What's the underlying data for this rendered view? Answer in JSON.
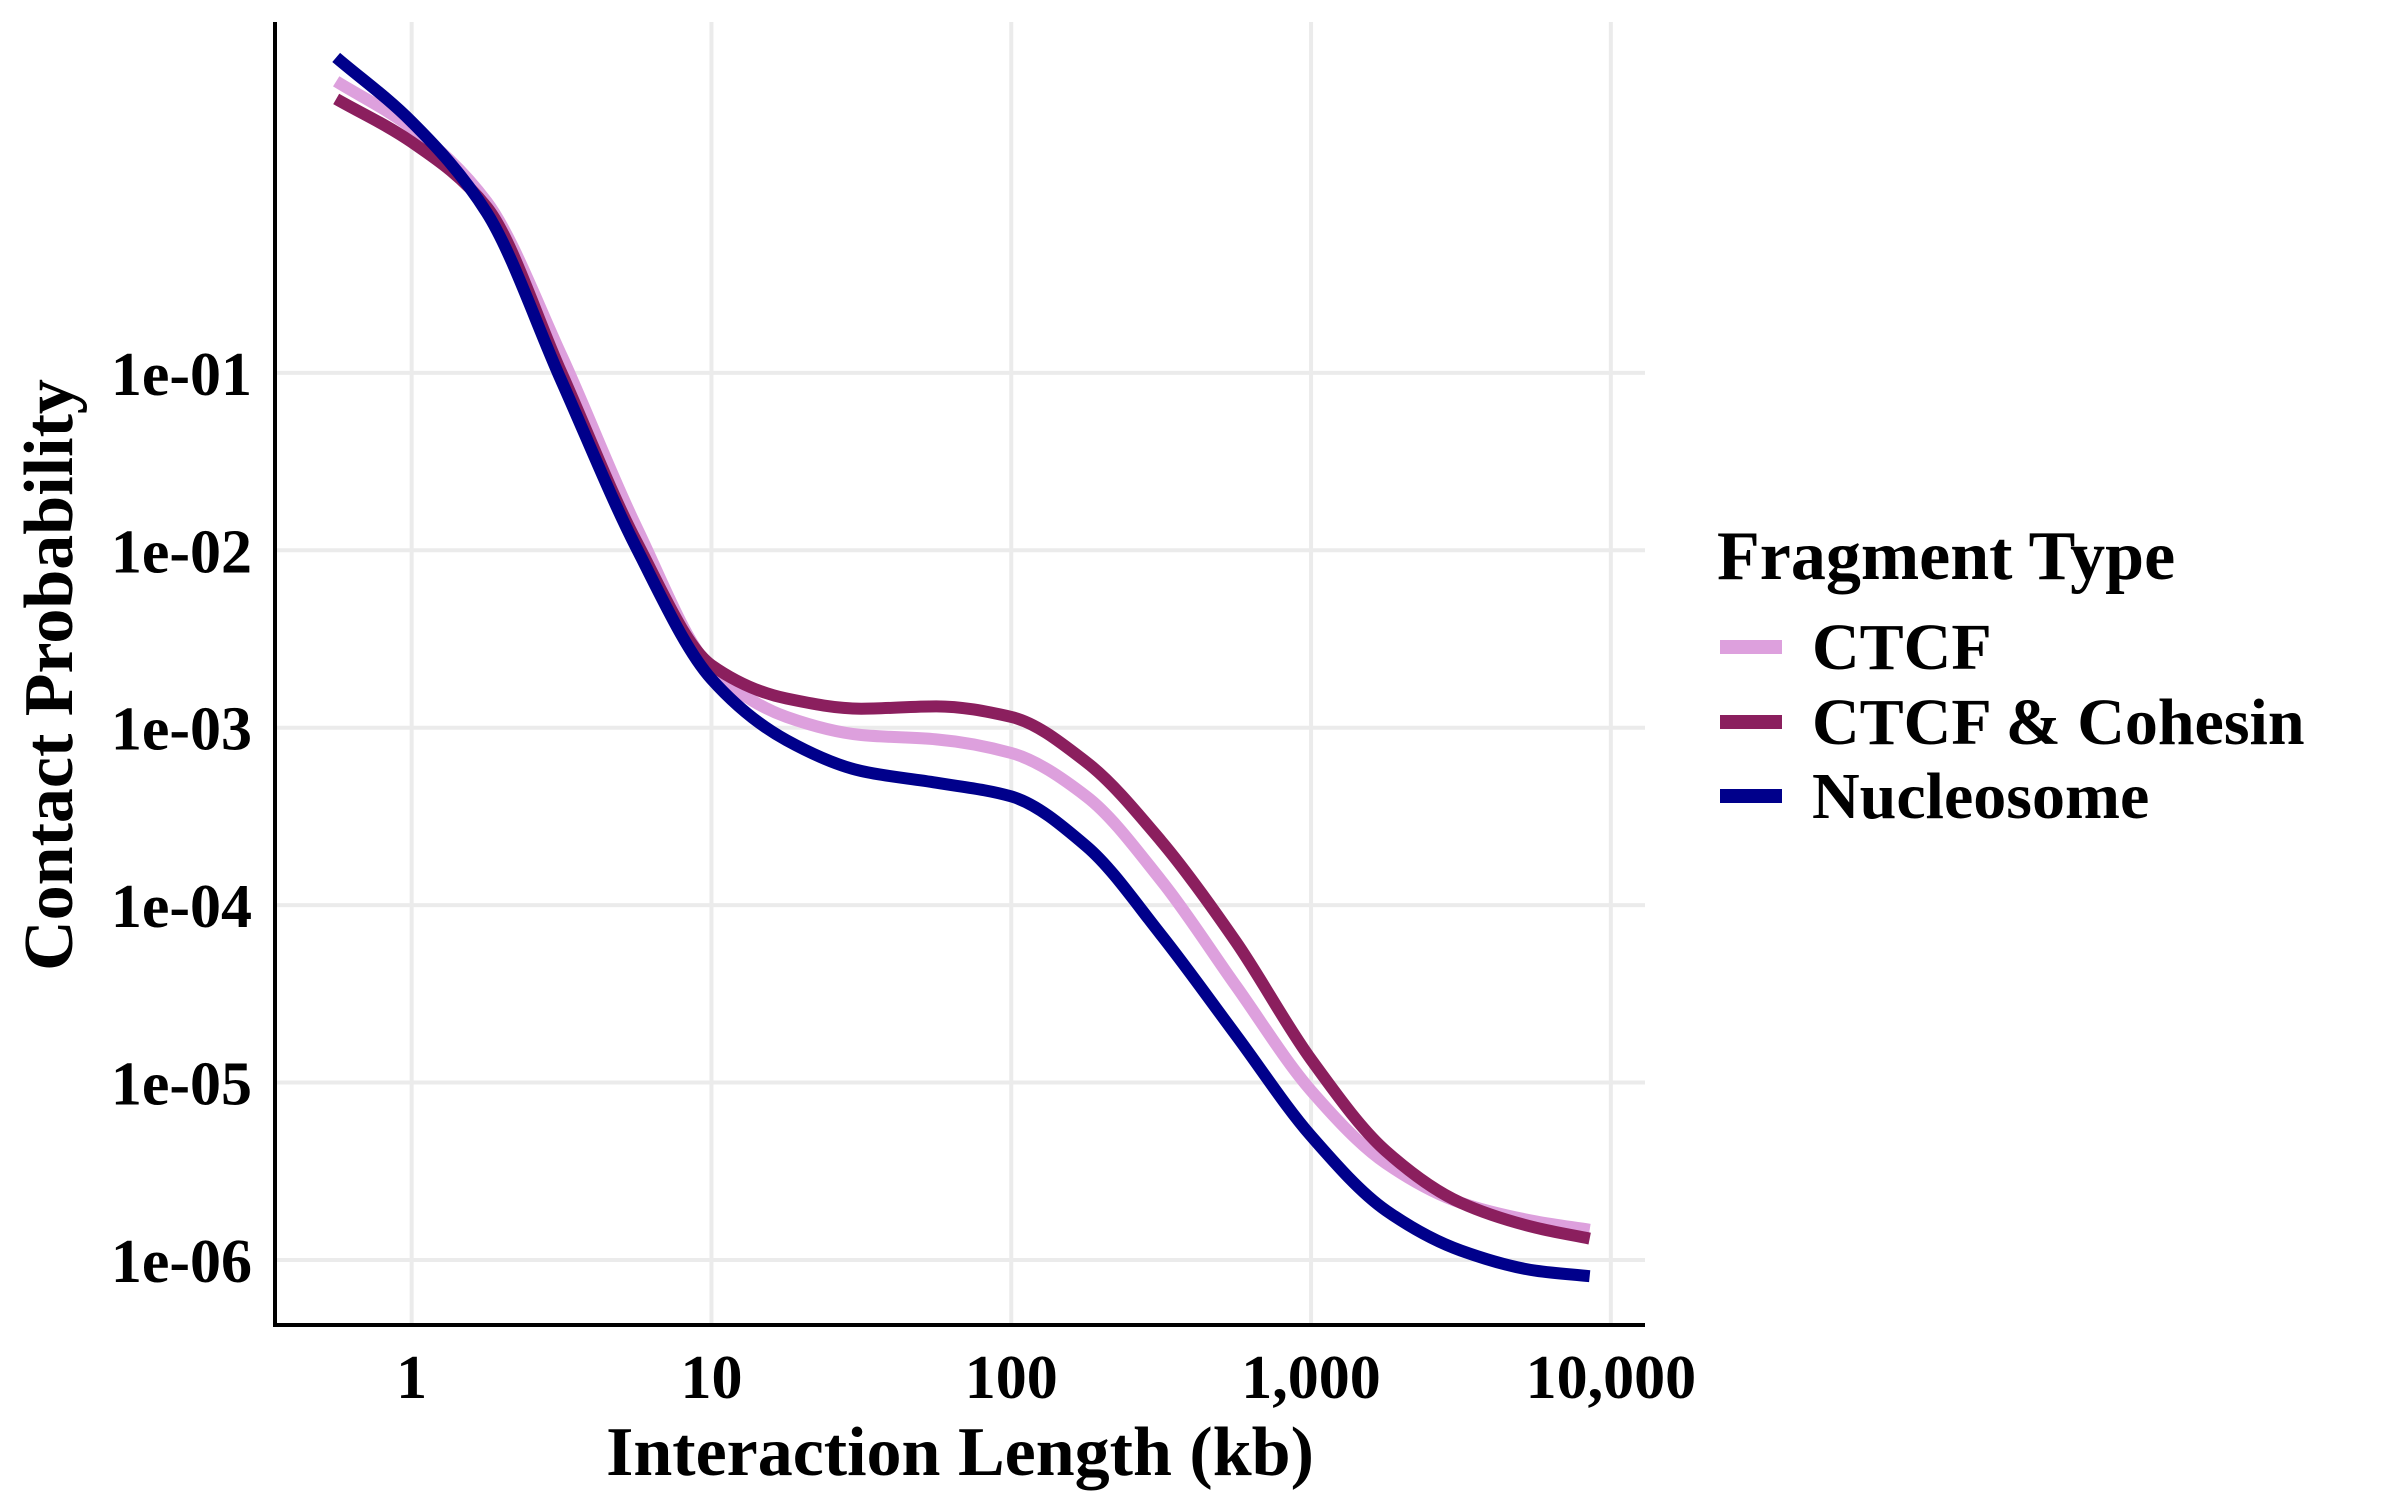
{
  "chart_data": {
    "type": "line",
    "title": "",
    "xlabel": "Interaction Length (kb)",
    "ylabel": "Contact Probability",
    "x_scale": "log10",
    "y_scale": "log10",
    "xlim": [
      0.35,
      13000
    ],
    "ylim": [
      4.3e-07,
      9.5
    ],
    "grid": true,
    "x_ticks": [
      1,
      10,
      100,
      1000,
      10000
    ],
    "x_tick_labels": [
      "1",
      "10",
      "100",
      "1,000",
      "10,000"
    ],
    "y_ticks": [
      1e-06,
      1e-05,
      0.0001,
      0.001,
      0.01,
      0.1
    ],
    "y_tick_labels": [
      "1e-06",
      "1e-05",
      "1e-04",
      "1e-03",
      "1e-02",
      "1e-01"
    ],
    "legend": {
      "title": "Fragment Type",
      "position": "right"
    },
    "series": [
      {
        "name": "CTCF",
        "color": "#dda0dd",
        "x": [
          0.56,
          1,
          1.78,
          3.16,
          5.62,
          10,
          17.8,
          31.6,
          56.2,
          100,
          178,
          316,
          562,
          1000,
          1780,
          3160,
          5620,
          8500
        ],
        "y": [
          4.4,
          2.4,
          0.92,
          0.125,
          0.0135,
          0.00215,
          0.00115,
          0.00091,
          0.00086,
          0.00072,
          0.00041,
          0.000138,
          3.5e-05,
          9e-06,
          3.5e-06,
          2.1e-06,
          1.65e-06,
          1.48e-06
        ]
      },
      {
        "name": "CTCF & Cohesin",
        "color": "#8b1f5e",
        "x": [
          0.56,
          1,
          1.78,
          3.16,
          5.62,
          10,
          17.8,
          31.6,
          56.2,
          100,
          178,
          316,
          562,
          1000,
          1780,
          3160,
          5620,
          8500
        ],
        "y": [
          3.5,
          2.0,
          0.86,
          0.1,
          0.0112,
          0.00225,
          0.00146,
          0.00128,
          0.00132,
          0.00115,
          0.00064,
          0.00023,
          6.2e-05,
          1.35e-05,
          4.1e-06,
          2.1e-06,
          1.52e-06,
          1.32e-06
        ]
      },
      {
        "name": "Nucleosome",
        "color": "#00008b",
        "x": [
          0.56,
          1,
          1.78,
          3.16,
          5.62,
          10,
          17.8,
          31.6,
          56.2,
          100,
          178,
          316,
          562,
          1000,
          1780,
          3160,
          5620,
          8500
        ],
        "y": [
          6.0,
          2.6,
          0.8,
          0.09,
          0.0103,
          0.00188,
          0.00085,
          0.00057,
          0.00049,
          0.00041,
          0.000215,
          6.8e-05,
          1.85e-05,
          5e-06,
          1.9e-06,
          1.13e-06,
          8.7e-07,
          8.1e-07
        ]
      }
    ]
  }
}
